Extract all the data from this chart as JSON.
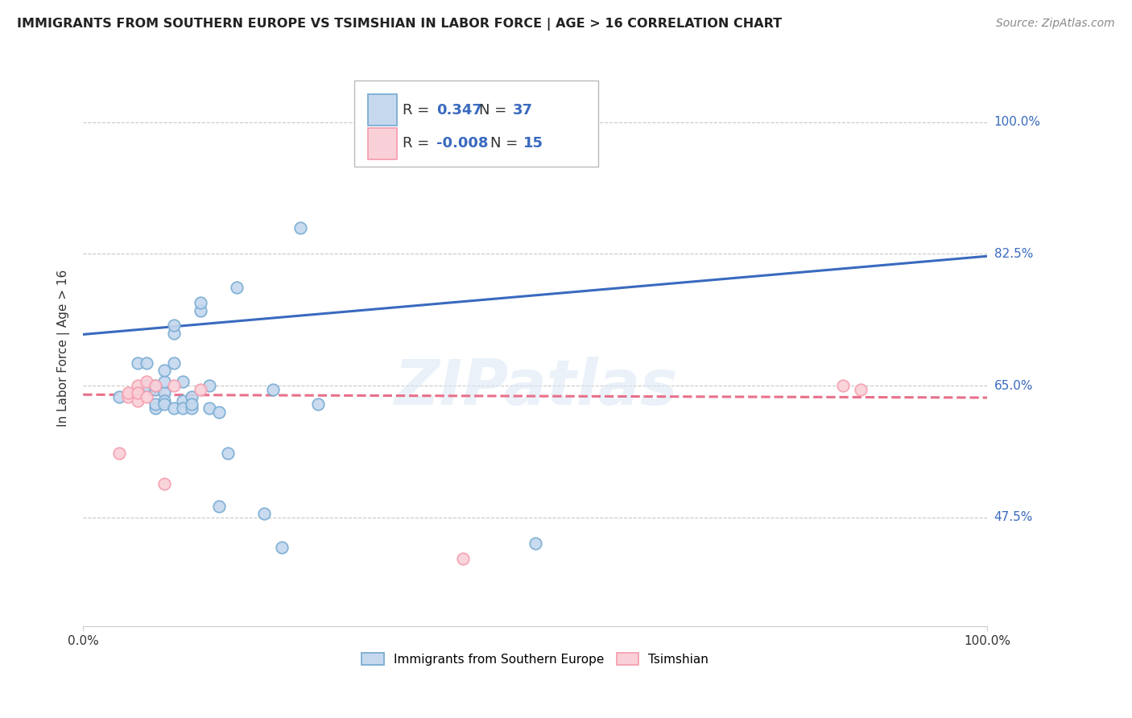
{
  "title": "IMMIGRANTS FROM SOUTHERN EUROPE VS TSIMSHIAN IN LABOR FORCE | AGE > 16 CORRELATION CHART",
  "source": "Source: ZipAtlas.com",
  "ylabel": "In Labor Force | Age > 16",
  "xlim": [
    0.0,
    1.0
  ],
  "ylim": [
    0.33,
    1.07
  ],
  "x_ticks": [
    0.0,
    1.0
  ],
  "x_tick_labels": [
    "0.0%",
    "100.0%"
  ],
  "y_tick_labels": [
    "47.5%",
    "65.0%",
    "82.5%",
    "100.0%"
  ],
  "y_ticks": [
    0.475,
    0.65,
    0.825,
    1.0
  ],
  "watermark": "ZIPatlas",
  "blue_color": "#7aadd4",
  "pink_color": "#f5a0b0",
  "blue_fill": "#c5d8ee",
  "pink_fill": "#fad0d8",
  "line_blue": "#3a6abf",
  "line_pink": "#e8708a",
  "r_value_color": "#3a6abf",
  "n_value_color": "#3a6abf",
  "legend_r_blue": "0.347",
  "legend_n_blue": "37",
  "legend_r_pink": "-0.008",
  "legend_n_pink": "15",
  "blue_scatter_x": [
    0.04,
    0.06,
    0.07,
    0.07,
    0.08,
    0.08,
    0.08,
    0.08,
    0.09,
    0.09,
    0.09,
    0.09,
    0.09,
    0.1,
    0.1,
    0.1,
    0.1,
    0.11,
    0.11,
    0.11,
    0.12,
    0.12,
    0.12,
    0.13,
    0.13,
    0.14,
    0.14,
    0.15,
    0.15,
    0.16,
    0.17,
    0.2,
    0.21,
    0.22,
    0.5,
    0.24,
    0.26
  ],
  "blue_scatter_y": [
    0.635,
    0.68,
    0.68,
    0.65,
    0.645,
    0.65,
    0.62,
    0.625,
    0.64,
    0.63,
    0.655,
    0.625,
    0.67,
    0.68,
    0.72,
    0.73,
    0.62,
    0.63,
    0.62,
    0.655,
    0.62,
    0.635,
    0.625,
    0.75,
    0.76,
    0.65,
    0.62,
    0.615,
    0.49,
    0.56,
    0.78,
    0.48,
    0.645,
    0.435,
    0.44,
    0.86,
    0.625
  ],
  "pink_scatter_x": [
    0.04,
    0.05,
    0.05,
    0.06,
    0.06,
    0.06,
    0.07,
    0.07,
    0.08,
    0.09,
    0.1,
    0.13,
    0.84,
    0.86,
    0.42
  ],
  "pink_scatter_y": [
    0.56,
    0.635,
    0.64,
    0.63,
    0.65,
    0.64,
    0.635,
    0.655,
    0.65,
    0.52,
    0.65,
    0.645,
    0.65,
    0.645,
    0.42
  ],
  "blue_line_x": [
    0.0,
    1.0
  ],
  "blue_line_y": [
    0.718,
    0.822
  ],
  "pink_line_x": [
    0.0,
    1.0
  ],
  "pink_line_y": [
    0.638,
    0.634
  ],
  "background_color": "#ffffff",
  "grid_color": "#c8c8c8"
}
